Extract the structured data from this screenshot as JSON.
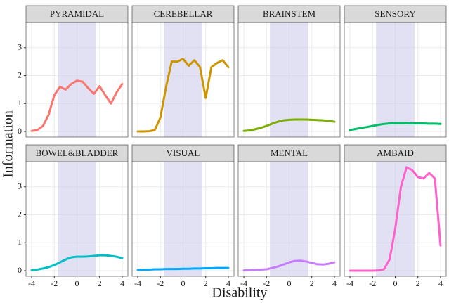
{
  "chart_data": {
    "type": "line",
    "xlabel": "Disability",
    "ylabel": "Information",
    "x": [
      -4,
      -3.5,
      -3,
      -2.5,
      -2,
      -1.5,
      -1,
      -0.5,
      0,
      0.5,
      1,
      1.5,
      2,
      2.5,
      3,
      3.5,
      4
    ],
    "xlim": [
      -4.5,
      4.5
    ],
    "xticks": [
      -4,
      -2,
      0,
      2,
      4
    ],
    "ylim": [
      -0.2,
      3.9
    ],
    "yticks": [
      0,
      1,
      2,
      3
    ],
    "shade": [
      -1.7,
      1.7
    ],
    "grid": true,
    "panels": [
      {
        "title": "PYRAMIDAL",
        "color": "#F8766D",
        "values": [
          0.02,
          0.05,
          0.2,
          0.6,
          1.3,
          1.6,
          1.5,
          1.7,
          1.82,
          1.78,
          1.55,
          1.35,
          1.62,
          1.3,
          1.0,
          1.4,
          1.7
        ]
      },
      {
        "title": "CEREBELLAR",
        "color": "#CD9600",
        "values": [
          0,
          0,
          0.01,
          0.05,
          0.5,
          1.6,
          2.5,
          2.5,
          2.6,
          2.35,
          2.55,
          2.3,
          1.2,
          2.3,
          2.45,
          2.55,
          2.3
        ]
      },
      {
        "title": "BRAINSTEM",
        "color": "#7CAE00",
        "values": [
          0.02,
          0.04,
          0.08,
          0.13,
          0.2,
          0.28,
          0.35,
          0.4,
          0.42,
          0.43,
          0.43,
          0.43,
          0.42,
          0.41,
          0.4,
          0.38,
          0.35
        ]
      },
      {
        "title": "SENSORY",
        "color": "#00BE67",
        "values": [
          0.05,
          0.09,
          0.13,
          0.16,
          0.2,
          0.24,
          0.27,
          0.29,
          0.3,
          0.3,
          0.3,
          0.29,
          0.29,
          0.29,
          0.28,
          0.28,
          0.27
        ]
      },
      {
        "title": "BOWEL&BLADDER",
        "color": "#00BFC4",
        "values": [
          0.02,
          0.04,
          0.08,
          0.13,
          0.2,
          0.3,
          0.4,
          0.48,
          0.5,
          0.5,
          0.51,
          0.53,
          0.55,
          0.55,
          0.53,
          0.5,
          0.45
        ]
      },
      {
        "title": "VISUAL",
        "color": "#00A9FF",
        "values": [
          0.03,
          0.04,
          0.04,
          0.05,
          0.05,
          0.06,
          0.06,
          0.06,
          0.07,
          0.07,
          0.08,
          0.08,
          0.09,
          0.09,
          0.1,
          0.1,
          0.1
        ]
      },
      {
        "title": "MENTAL",
        "color": "#C77CFF",
        "values": [
          0.01,
          0.02,
          0.03,
          0.04,
          0.05,
          0.1,
          0.15,
          0.22,
          0.3,
          0.35,
          0.36,
          0.33,
          0.28,
          0.23,
          0.22,
          0.25,
          0.3
        ]
      },
      {
        "title": "AMBAID",
        "color": "#FF61CC",
        "values": [
          0,
          0,
          0,
          0,
          0,
          0.01,
          0.05,
          0.4,
          1.5,
          3.0,
          3.7,
          3.6,
          3.35,
          3.3,
          3.5,
          3.3,
          0.9
        ]
      }
    ]
  }
}
